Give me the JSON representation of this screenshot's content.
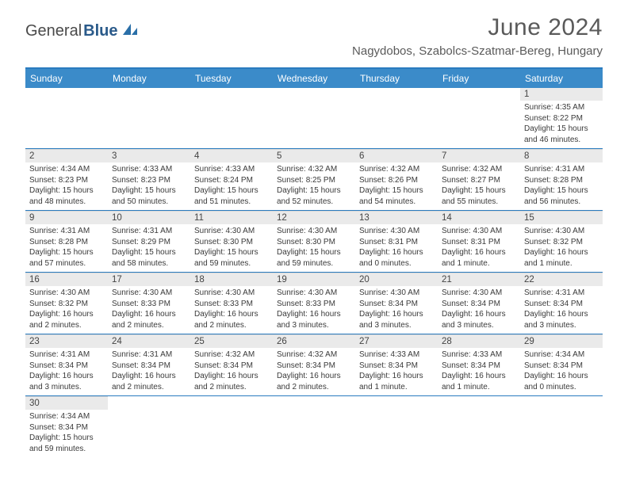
{
  "brand": {
    "part1": "General",
    "part2": "Blue"
  },
  "title": "June 2024",
  "location": "Nagydobos, Szabolcs-Szatmar-Bereg, Hungary",
  "colors": {
    "header_bg": "#3b8bc9",
    "accent_line": "#2a7bbf",
    "daynum_bg": "#eaeaea",
    "text": "#3a3a3a"
  },
  "day_labels": [
    "Sunday",
    "Monday",
    "Tuesday",
    "Wednesday",
    "Thursday",
    "Friday",
    "Saturday"
  ],
  "weeks": [
    [
      null,
      null,
      null,
      null,
      null,
      null,
      {
        "n": "1",
        "sr": "4:35 AM",
        "ss": "8:22 PM",
        "dl": "15 hours and 46 minutes."
      }
    ],
    [
      {
        "n": "2",
        "sr": "4:34 AM",
        "ss": "8:23 PM",
        "dl": "15 hours and 48 minutes."
      },
      {
        "n": "3",
        "sr": "4:33 AM",
        "ss": "8:23 PM",
        "dl": "15 hours and 50 minutes."
      },
      {
        "n": "4",
        "sr": "4:33 AM",
        "ss": "8:24 PM",
        "dl": "15 hours and 51 minutes."
      },
      {
        "n": "5",
        "sr": "4:32 AM",
        "ss": "8:25 PM",
        "dl": "15 hours and 52 minutes."
      },
      {
        "n": "6",
        "sr": "4:32 AM",
        "ss": "8:26 PM",
        "dl": "15 hours and 54 minutes."
      },
      {
        "n": "7",
        "sr": "4:32 AM",
        "ss": "8:27 PM",
        "dl": "15 hours and 55 minutes."
      },
      {
        "n": "8",
        "sr": "4:31 AM",
        "ss": "8:28 PM",
        "dl": "15 hours and 56 minutes."
      }
    ],
    [
      {
        "n": "9",
        "sr": "4:31 AM",
        "ss": "8:28 PM",
        "dl": "15 hours and 57 minutes."
      },
      {
        "n": "10",
        "sr": "4:31 AM",
        "ss": "8:29 PM",
        "dl": "15 hours and 58 minutes."
      },
      {
        "n": "11",
        "sr": "4:30 AM",
        "ss": "8:30 PM",
        "dl": "15 hours and 59 minutes."
      },
      {
        "n": "12",
        "sr": "4:30 AM",
        "ss": "8:30 PM",
        "dl": "15 hours and 59 minutes."
      },
      {
        "n": "13",
        "sr": "4:30 AM",
        "ss": "8:31 PM",
        "dl": "16 hours and 0 minutes."
      },
      {
        "n": "14",
        "sr": "4:30 AM",
        "ss": "8:31 PM",
        "dl": "16 hours and 1 minute."
      },
      {
        "n": "15",
        "sr": "4:30 AM",
        "ss": "8:32 PM",
        "dl": "16 hours and 1 minute."
      }
    ],
    [
      {
        "n": "16",
        "sr": "4:30 AM",
        "ss": "8:32 PM",
        "dl": "16 hours and 2 minutes."
      },
      {
        "n": "17",
        "sr": "4:30 AM",
        "ss": "8:33 PM",
        "dl": "16 hours and 2 minutes."
      },
      {
        "n": "18",
        "sr": "4:30 AM",
        "ss": "8:33 PM",
        "dl": "16 hours and 2 minutes."
      },
      {
        "n": "19",
        "sr": "4:30 AM",
        "ss": "8:33 PM",
        "dl": "16 hours and 3 minutes."
      },
      {
        "n": "20",
        "sr": "4:30 AM",
        "ss": "8:34 PM",
        "dl": "16 hours and 3 minutes."
      },
      {
        "n": "21",
        "sr": "4:30 AM",
        "ss": "8:34 PM",
        "dl": "16 hours and 3 minutes."
      },
      {
        "n": "22",
        "sr": "4:31 AM",
        "ss": "8:34 PM",
        "dl": "16 hours and 3 minutes."
      }
    ],
    [
      {
        "n": "23",
        "sr": "4:31 AM",
        "ss": "8:34 PM",
        "dl": "16 hours and 3 minutes."
      },
      {
        "n": "24",
        "sr": "4:31 AM",
        "ss": "8:34 PM",
        "dl": "16 hours and 2 minutes."
      },
      {
        "n": "25",
        "sr": "4:32 AM",
        "ss": "8:34 PM",
        "dl": "16 hours and 2 minutes."
      },
      {
        "n": "26",
        "sr": "4:32 AM",
        "ss": "8:34 PM",
        "dl": "16 hours and 2 minutes."
      },
      {
        "n": "27",
        "sr": "4:33 AM",
        "ss": "8:34 PM",
        "dl": "16 hours and 1 minute."
      },
      {
        "n": "28",
        "sr": "4:33 AM",
        "ss": "8:34 PM",
        "dl": "16 hours and 1 minute."
      },
      {
        "n": "29",
        "sr": "4:34 AM",
        "ss": "8:34 PM",
        "dl": "16 hours and 0 minutes."
      }
    ],
    [
      {
        "n": "30",
        "sr": "4:34 AM",
        "ss": "8:34 PM",
        "dl": "15 hours and 59 minutes."
      },
      null,
      null,
      null,
      null,
      null,
      null
    ]
  ],
  "labels": {
    "sunrise": "Sunrise:",
    "sunset": "Sunset:",
    "daylight": "Daylight:"
  }
}
